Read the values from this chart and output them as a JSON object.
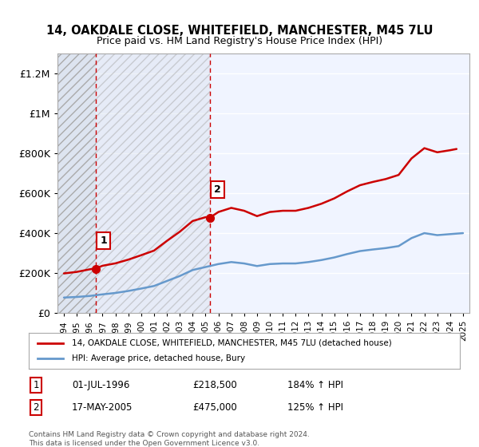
{
  "title": "14, OAKDALE CLOSE, WHITEFIELD, MANCHESTER, M45 7LU",
  "subtitle": "Price paid vs. HM Land Registry's House Price Index (HPI)",
  "red_line_label": "14, OAKDALE CLOSE, WHITEFIELD, MANCHESTER, M45 7LU (detached house)",
  "blue_line_label": "HPI: Average price, detached house, Bury",
  "transaction1_date": 1996.5,
  "transaction1_price": 218500,
  "transaction1_label": "1",
  "transaction1_text": "01-JUL-1996    £218,500    184% ↑ HPI",
  "transaction2_date": 2005.37,
  "transaction2_price": 475000,
  "transaction2_label": "2",
  "transaction2_text": "17-MAY-2005    £475,000    125% ↑ HPI",
  "ylim": [
    0,
    1300000
  ],
  "xlim_start": 1993.5,
  "xlim_end": 2025.5,
  "footer": "Contains HM Land Registry data © Crown copyright and database right 2024.\nThis data is licensed under the Open Government Licence v3.0.",
  "red_color": "#cc0000",
  "blue_color": "#6699cc",
  "hatch_color": "#cccccc",
  "bg_color": "#ffffff",
  "plot_bg": "#f0f4ff",
  "hatch_bg": "#dde4f0",
  "yticks": [
    0,
    200000,
    400000,
    600000,
    800000,
    1000000,
    1200000
  ],
  "ytick_labels": [
    "£0",
    "£200K",
    "£400K",
    "£600K",
    "£800K",
    "£1M",
    "£1.2M"
  ]
}
